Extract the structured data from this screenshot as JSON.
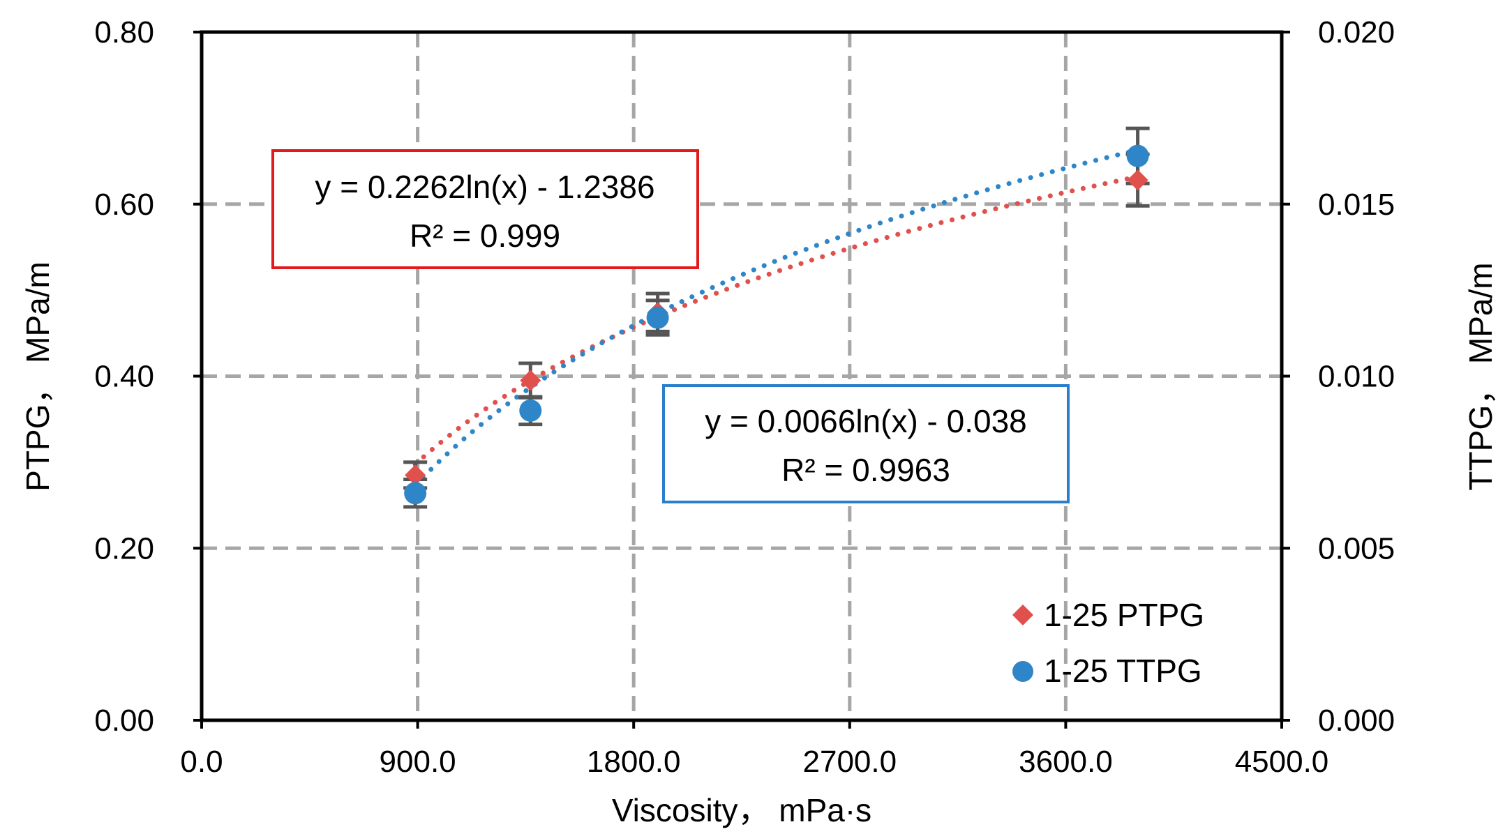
{
  "chart_data": {
    "type": "scatter",
    "x_axis": {
      "label": "Viscosity，  mPa·s",
      "min": 0,
      "max": 4500,
      "ticks": [
        0,
        900,
        1800,
        2700,
        3600,
        4500
      ],
      "tick_labels": [
        "0.0",
        "900.0",
        "1800.0",
        "2700.0",
        "3600.0",
        "4500.0"
      ]
    },
    "y_axis_left": {
      "label": "PTPG，  MPa/m",
      "min": 0,
      "max": 0.8,
      "ticks": [
        0,
        0.2,
        0.4,
        0.6,
        0.8
      ],
      "tick_labels": [
        "0.00",
        "0.20",
        "0.40",
        "0.60",
        "0.80"
      ]
    },
    "y_axis_right": {
      "label": "TTPG，  MPa/m",
      "min": 0,
      "max": 0.02,
      "ticks": [
        0,
        0.005,
        0.01,
        0.015,
        0.02
      ],
      "tick_labels": [
        "0.000",
        "0.005",
        "0.010",
        "0.015",
        "0.020"
      ]
    },
    "grid": true,
    "legend_position": "bottom-right",
    "series": [
      {
        "name": "1-25 PTPG",
        "axis": "left",
        "marker": "diamond",
        "color": "#e0504d",
        "points": [
          {
            "x": 890,
            "y": 0.285,
            "err": 0.015
          },
          {
            "x": 1370,
            "y": 0.395,
            "err": 0.02
          },
          {
            "x": 1900,
            "y": 0.474,
            "err": 0.022
          },
          {
            "x": 3900,
            "y": 0.628,
            "err": 0.03
          }
        ],
        "trendline": {
          "type": "log",
          "a": 0.2262,
          "b": -1.2386,
          "x_from": 890,
          "x_to": 3900,
          "equation": "y = 0.2262ln(x) - 1.2386",
          "r2": "R² = 0.999"
        }
      },
      {
        "name": "1-25 TTPG",
        "axis": "right",
        "marker": "circle",
        "color": "#2e86c8",
        "points": [
          {
            "x": 890,
            "y": 0.0066,
            "err": 0.0004
          },
          {
            "x": 1370,
            "y": 0.009,
            "err": 0.0004
          },
          {
            "x": 1900,
            "y": 0.0117,
            "err": 0.0005
          },
          {
            "x": 3900,
            "y": 0.0164,
            "err": 0.0008
          }
        ],
        "trendline": {
          "type": "log",
          "a": 0.0066,
          "b": -0.038,
          "x_from": 890,
          "x_to": 3900,
          "equation": "y = 0.0066ln(x) - 0.038",
          "r2": "R² = 0.9963"
        }
      }
    ],
    "error_bar_color": "#555555"
  }
}
